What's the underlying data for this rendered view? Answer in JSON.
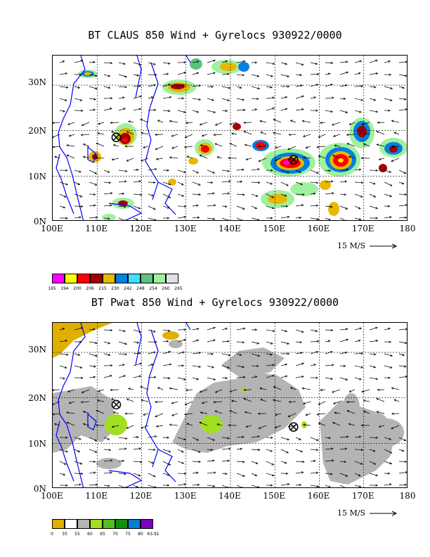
{
  "panel1": {
    "title": "BT CLAUS 850 Wind + Gyrelocs 930922/0000",
    "scale_label": "15 M/S",
    "legend_labels": [
      "165",
      "194",
      "200",
      "206",
      "215",
      "230",
      "242",
      "248",
      "254",
      "260",
      "265"
    ],
    "legend_colors": [
      "#ff00ff",
      "#ffff00",
      "#ff0000",
      "#a00000",
      "#e6b800",
      "#0080e0",
      "#40e0ff",
      "#60c080",
      "#a0f0a0",
      "#e0e0e0"
    ]
  },
  "panel2": {
    "title": "BT Pwat 850 Wind + Gyrelocs 930922/0000",
    "scale_label": "15 M/S",
    "legend_labels": [
      "0",
      "35",
      "55",
      "60",
      "65",
      "70",
      "75",
      "80",
      "63.91"
    ],
    "legend_colors": [
      "#e0b000",
      "#ffffff",
      "#b4b4b4",
      "#a0e020",
      "#50c020",
      "#109010",
      "#0080d0",
      "#8000c0"
    ]
  },
  "axes": {
    "lat_labels": [
      "30N",
      "20N",
      "10N",
      "0N"
    ],
    "lon_labels": [
      "100E",
      "110E",
      "120E",
      "130E",
      "140E",
      "150E",
      "160E",
      "170E",
      "180"
    ]
  },
  "gyre_locations": [
    {
      "lon": 114.3,
      "lat": 18.5
    },
    {
      "lon": 154.2,
      "lat": 13.6
    }
  ]
}
